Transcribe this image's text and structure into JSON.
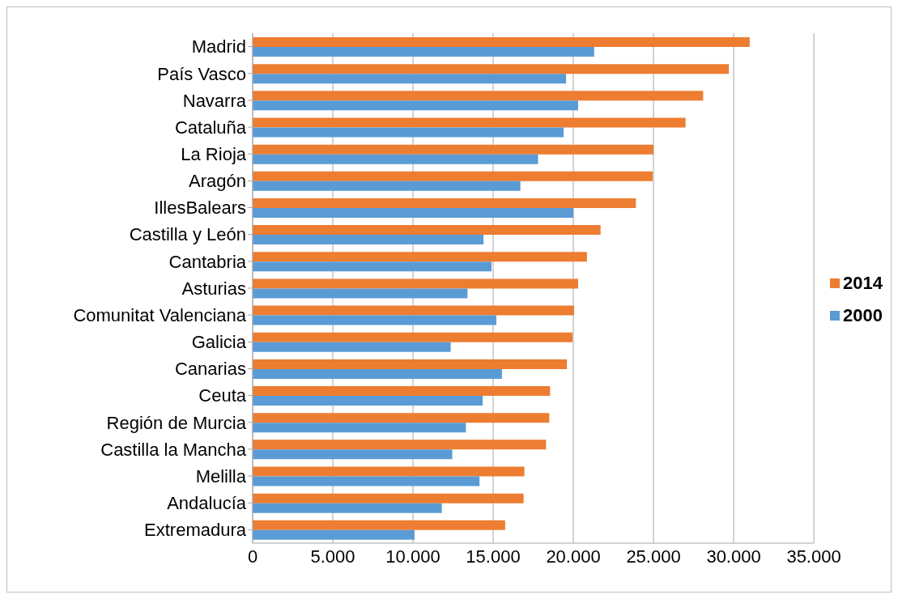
{
  "chart_data": {
    "type": "bar",
    "orientation": "horizontal",
    "categories": [
      "Madrid",
      "País Vasco",
      "Navarra",
      "Cataluña",
      "La Rioja",
      "Aragón",
      "IllesBalears",
      "Castilla y León",
      "Cantabria",
      "Asturias",
      "Comunitat Valenciana",
      "Galicia",
      "Canarias",
      "Ceuta",
      "Región de Murcia",
      "Castilla la Mancha",
      "Melilla",
      "Andalucía",
      "Extremadura"
    ],
    "series": [
      {
        "name": "2014",
        "color": "#ed7d31",
        "values": [
          31000,
          29700,
          28100,
          27000,
          25000,
          24950,
          23900,
          21700,
          20850,
          20300,
          20050,
          19950,
          19600,
          18550,
          18500,
          18300,
          16950,
          16900,
          15750
        ]
      },
      {
        "name": "2000",
        "color": "#5b9bd5",
        "values": [
          21300,
          19550,
          20300,
          19400,
          17800,
          16700,
          20000,
          14400,
          14900,
          13400,
          15200,
          12350,
          15550,
          14350,
          13300,
          12450,
          14150,
          11800,
          10100
        ]
      }
    ],
    "xlim": [
      0,
      35000
    ],
    "xticks": [
      0,
      {
        "value": 5000,
        "label": "5.000"
      },
      {
        "value": 10000,
        "label": "10.000"
      },
      {
        "value": 15000,
        "label": "15.000"
      },
      {
        "value": 20000,
        "label": "20.000"
      },
      {
        "value": 25000,
        "label": "25.000"
      },
      {
        "value": 30000,
        "label": "30.000"
      },
      {
        "value": 35000,
        "label": "35.000"
      }
    ],
    "grid": "x",
    "legend": "right"
  }
}
